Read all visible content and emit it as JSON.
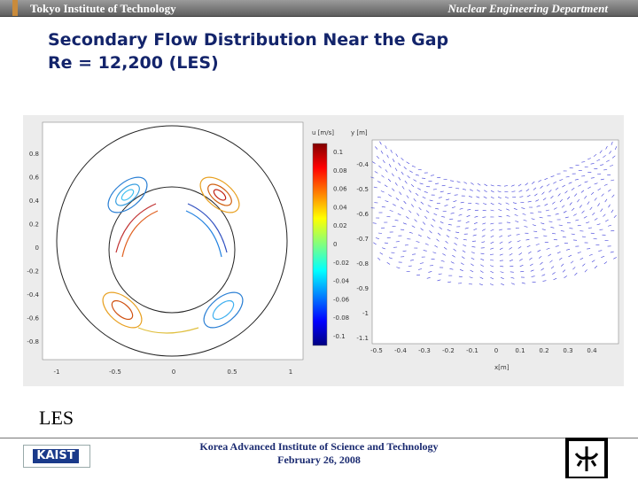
{
  "header": {
    "left": "Tokyo Institute of Technology",
    "right": "Nuclear Engineering Department"
  },
  "title": {
    "line1": "Secondary Flow Distribution Near the Gap",
    "line2": "Re = 12,200 (LES)"
  },
  "figure": {
    "left_plot": {
      "y_ticks": [
        "0.8",
        "0.6",
        "0.4",
        "0.2",
        "0",
        "-0.2",
        "-0.4",
        "-0.6",
        "-0.8"
      ],
      "x_ticks": [
        "-1",
        "-0.5",
        "0",
        "0.5",
        "1"
      ]
    },
    "colorbar": {
      "label": "u [m/s]",
      "ticks": [
        "0.1",
        "0.08",
        "0.06",
        "0.04",
        "0.02",
        "0",
        "-0.02",
        "-0.04",
        "-0.06",
        "-0.08",
        "-0.1"
      ]
    },
    "right_plot": {
      "ylabel": "y [m]",
      "xlabel": "x[m]",
      "y_ticks": [
        "-0.4",
        "-0.5",
        "-0.6",
        "-0.7",
        "-0.8",
        "-0.9",
        "-1",
        "-1.1"
      ],
      "x_ticks": [
        "-0.5",
        "-0.4",
        "-0.3",
        "-0.2",
        "-0.1",
        "0",
        "0.1",
        "0.2",
        "0.3",
        "0.4"
      ]
    }
  },
  "caption": "LES",
  "footer": {
    "line1": "Korea Advanced Institute of Science and Technology",
    "line2": "February 26, 2008"
  },
  "logos": {
    "kaist_text": "KAIST"
  },
  "colors": {
    "title": "#13246b",
    "header_bar": "#7a7a7a",
    "footer_text": "#1a2a70"
  }
}
